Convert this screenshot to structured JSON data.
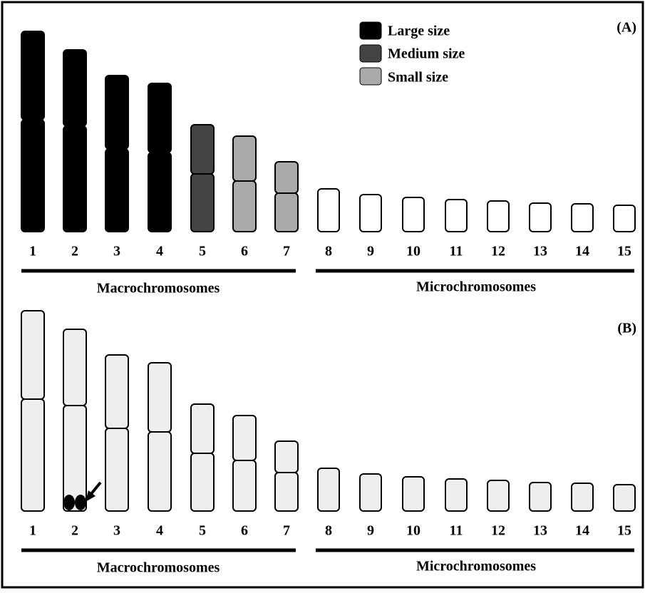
{
  "legend": [
    {
      "label": "Large size"
    },
    {
      "label": "Medium size"
    },
    {
      "label": "Small size"
    }
  ],
  "panels": [
    {
      "label": "(A)",
      "chromosomes": [
        "1",
        "2",
        "3",
        "4",
        "5",
        "6",
        "7",
        "8",
        "9",
        "10",
        "11",
        "12",
        "13",
        "14",
        "15"
      ],
      "groups": [
        "Macrochromosomes",
        "Microchromosomes"
      ]
    },
    {
      "label": "(B)",
      "chromosomes": [
        "1",
        "2",
        "3",
        "4",
        "5",
        "6",
        "7",
        "8",
        "9",
        "10",
        "11",
        "12",
        "13",
        "14",
        "15"
      ],
      "groups": [
        "Macrochromosomes",
        "Microchromosomes"
      ]
    }
  ]
}
